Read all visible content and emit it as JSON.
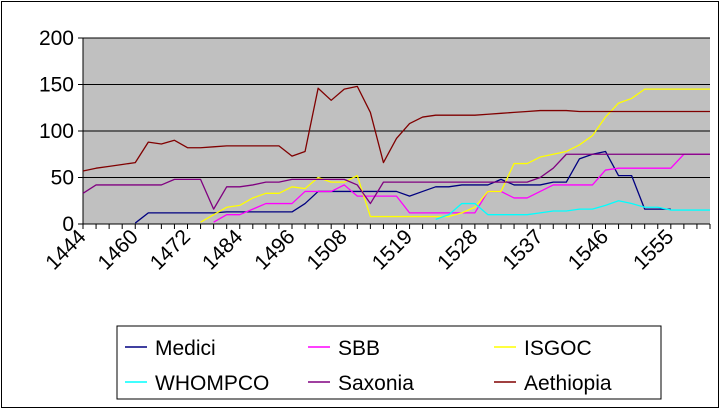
{
  "chart_data": {
    "type": "line",
    "title": "",
    "xlabel": "",
    "ylabel": "",
    "ylim": [
      0,
      200
    ],
    "yticks": [
      0,
      50,
      100,
      150,
      200
    ],
    "grid": true,
    "legend_position": "bottom",
    "plot_background": "#c0c0c0",
    "x_tick_labels": [
      "1444",
      "1460",
      "1472",
      "1484",
      "1496",
      "1508",
      "1519",
      "1528",
      "1537",
      "1546",
      "1555"
    ],
    "x": [
      "1444",
      "1448",
      "1452",
      "1456",
      "1460",
      "1464",
      "1468",
      "1470",
      "1472",
      "1474",
      "1478",
      "1482",
      "1484",
      "1488",
      "1492",
      "1494",
      "1496",
      "1500",
      "1504",
      "1506",
      "1508",
      "1510",
      "1514",
      "1516",
      "1517",
      "1519",
      "1521",
      "1523",
      "1525",
      "1526",
      "1528",
      "1530",
      "1532",
      "1534",
      "1535",
      "1537",
      "1539",
      "1541",
      "1543",
      "1544",
      "1546",
      "1548",
      "1550",
      "1552",
      "1553",
      "1555",
      "1557",
      "1559",
      "1561"
    ],
    "series": [
      {
        "name": "Medici",
        "color": "#000080",
        "values": [
          null,
          null,
          null,
          null,
          1,
          12,
          12,
          12,
          12,
          12,
          12,
          13,
          13,
          13,
          13,
          13,
          13,
          22,
          35,
          35,
          35,
          35,
          35,
          35,
          35,
          30,
          35,
          40,
          40,
          42,
          42,
          42,
          48,
          42,
          42,
          42,
          45,
          45,
          70,
          75,
          78,
          52,
          52,
          16,
          16,
          16,
          null,
          null,
          null
        ]
      },
      {
        "name": "SBB",
        "color": "#ff00ff",
        "values": [
          null,
          null,
          null,
          null,
          null,
          null,
          null,
          null,
          null,
          null,
          2,
          10,
          10,
          16,
          22,
          22,
          22,
          35,
          35,
          35,
          42,
          30,
          30,
          30,
          30,
          12,
          12,
          12,
          12,
          12,
          12,
          35,
          35,
          28,
          28,
          35,
          42,
          42,
          42,
          42,
          58,
          60,
          60,
          60,
          60,
          60,
          75,
          75,
          75
        ]
      },
      {
        "name": "ISGOC",
        "color": "#ffff00",
        "values": [
          null,
          null,
          null,
          null,
          null,
          null,
          null,
          null,
          null,
          2,
          10,
          18,
          20,
          28,
          33,
          33,
          40,
          38,
          50,
          45,
          45,
          52,
          8,
          8,
          8,
          8,
          8,
          8,
          8,
          12,
          18,
          35,
          35,
          65,
          65,
          72,
          75,
          78,
          85,
          95,
          115,
          130,
          135,
          145,
          145,
          145,
          145,
          145,
          145
        ]
      },
      {
        "name": "WHOMPCO",
        "color": "#00ffff",
        "values": [
          null,
          null,
          null,
          null,
          null,
          null,
          null,
          null,
          null,
          null,
          null,
          null,
          null,
          null,
          null,
          null,
          null,
          null,
          null,
          null,
          null,
          null,
          null,
          null,
          null,
          null,
          null,
          5,
          10,
          22,
          22,
          10,
          10,
          10,
          10,
          12,
          14,
          14,
          16,
          16,
          20,
          25,
          22,
          18,
          18,
          15,
          15,
          15,
          15
        ]
      },
      {
        "name": "Saxonia",
        "color": "#800080",
        "values": [
          33,
          42,
          42,
          42,
          42,
          42,
          42,
          48,
          48,
          48,
          16,
          40,
          40,
          42,
          45,
          45,
          48,
          48,
          48,
          48,
          48,
          42,
          22,
          45,
          45,
          45,
          45,
          45,
          45,
          45,
          45,
          45,
          45,
          45,
          45,
          50,
          60,
          75,
          75,
          75,
          75,
          75,
          75,
          75,
          75,
          75,
          75,
          75,
          75
        ]
      },
      {
        "name": "Aethiopia",
        "color": "#800000",
        "values": [
          57,
          60,
          62,
          64,
          66,
          88,
          86,
          90,
          82,
          82,
          83,
          84,
          84,
          84,
          84,
          84,
          73,
          78,
          146,
          133,
          145,
          148,
          120,
          66,
          92,
          108,
          115,
          117,
          117,
          117,
          117,
          118,
          119,
          120,
          121,
          122,
          122,
          122,
          121,
          121,
          121,
          121,
          121,
          121,
          121,
          121,
          121,
          121,
          121
        ]
      }
    ]
  }
}
